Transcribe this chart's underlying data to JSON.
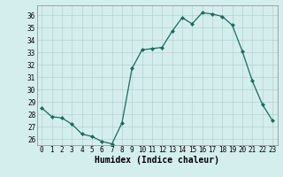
{
  "x": [
    0,
    1,
    2,
    3,
    4,
    5,
    6,
    7,
    8,
    9,
    10,
    11,
    12,
    13,
    14,
    15,
    16,
    17,
    18,
    19,
    20,
    21,
    22,
    23
  ],
  "y": [
    28.5,
    27.8,
    27.7,
    27.2,
    26.4,
    26.2,
    25.8,
    25.6,
    27.3,
    31.7,
    33.2,
    33.3,
    33.4,
    34.7,
    35.8,
    35.3,
    36.2,
    36.1,
    35.9,
    35.2,
    33.1,
    30.7,
    28.8,
    27.5
  ],
  "line_color": "#1a6b5a",
  "marker": "D",
  "marker_size": 2.0,
  "bg_color": "#d4eeee",
  "grid_color": "#b8d0d0",
  "xlabel": "Humidex (Indice chaleur)",
  "ylim": [
    25.5,
    36.8
  ],
  "yticks": [
    26,
    27,
    28,
    29,
    30,
    31,
    32,
    33,
    34,
    35,
    36
  ],
  "xticks": [
    0,
    1,
    2,
    3,
    4,
    5,
    6,
    7,
    8,
    9,
    10,
    11,
    12,
    13,
    14,
    15,
    16,
    17,
    18,
    19,
    20,
    21,
    22,
    23
  ],
  "tick_fontsize": 5.5,
  "label_fontsize": 7.0,
  "spine_color": "#888888"
}
